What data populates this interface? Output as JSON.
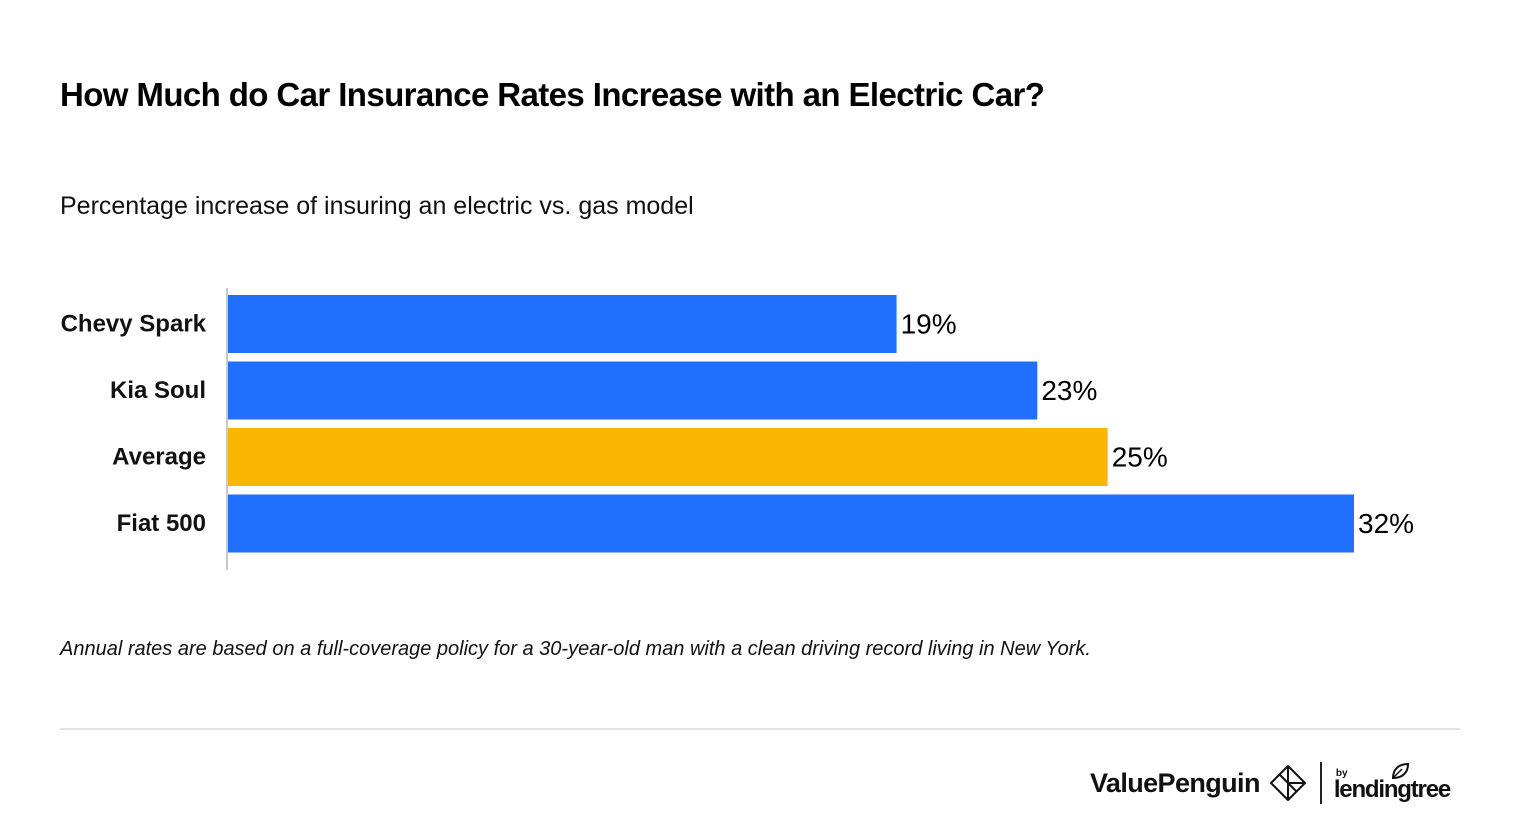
{
  "header": {
    "title": "How Much do Car Insurance Rates Increase with an Electric Car?",
    "subtitle": "Percentage increase of insuring an electric vs. gas model"
  },
  "chart_data": {
    "type": "bar",
    "orientation": "horizontal",
    "title": "How Much do Car Insurance Rates Increase with an Electric Car?",
    "subtitle": "Percentage increase of insuring an electric vs. gas model",
    "categories": [
      "Chevy Spark",
      "Kia Soul",
      "Average",
      "Fiat 500"
    ],
    "values": [
      19,
      23,
      25,
      32
    ],
    "value_labels": [
      "19%",
      "23%",
      "25%",
      "32%"
    ],
    "unit": "%",
    "xlim": [
      0,
      32
    ],
    "grid": false,
    "legend": "none",
    "colors": {
      "default": "#216ffd",
      "highlight": "#f9b600",
      "axis": "#c9c9c9"
    },
    "highlight_category": "Average"
  },
  "footnote": "Annual rates are based on a full-coverage policy for a 30-year-old man with a clean driving record living in New York.",
  "footer": {
    "brand": "ValuePenguin",
    "brand_icon": "valuepenguin-logo-icon",
    "partner_prefix": "by",
    "partner": "lendingtree",
    "partner_icon": "leaf-icon"
  }
}
